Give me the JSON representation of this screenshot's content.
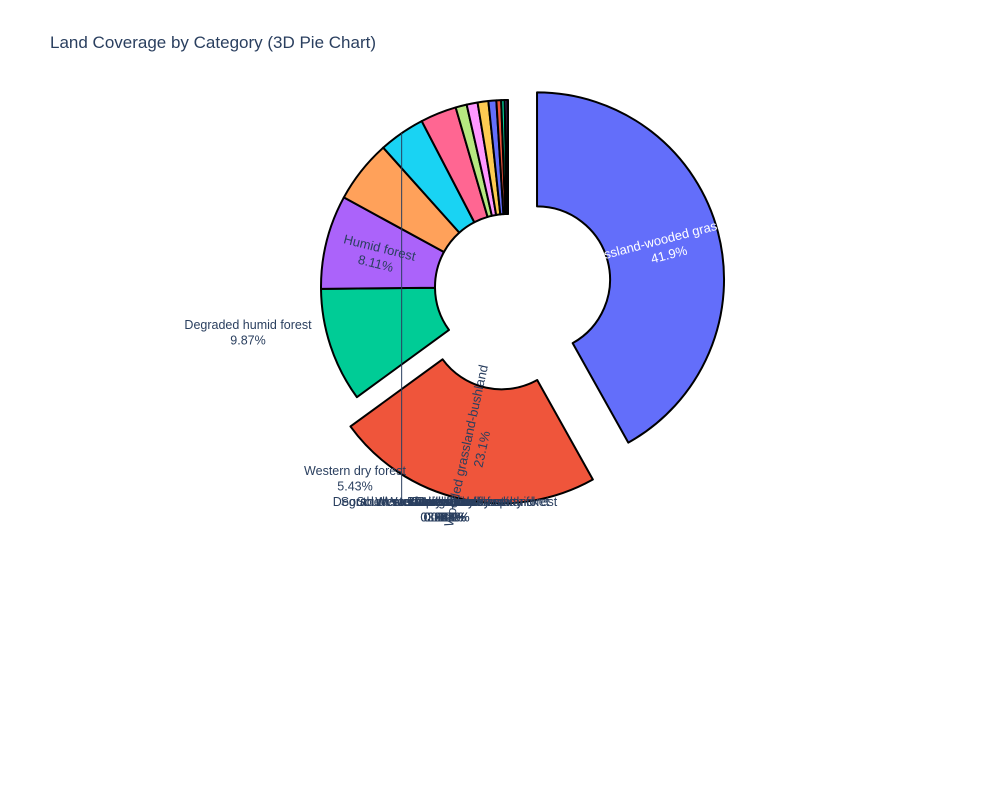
{
  "chart_data": {
    "type": "pie",
    "title": "Land Coverage by Category (3D Pie Chart)",
    "hole": true,
    "slices": [
      {
        "label": "Plateau grassland-wooded grassland mosaic",
        "percent_text": "41.9%",
        "value": 41.9,
        "color": "#636efa",
        "pulled": true,
        "inside": true,
        "text_color": "#ffffff"
      },
      {
        "label": "Wooded grassland-bushland",
        "percent_text": "23.1%",
        "value": 23.1,
        "color": "#ef553b",
        "pulled": true,
        "inside": true,
        "text_color": "#2a3f5f"
      },
      {
        "label": "Degraded humid forest",
        "percent_text": "9.87%",
        "value": 9.87,
        "color": "#00cc96"
      },
      {
        "label": "Humid forest",
        "percent_text": "8.11%",
        "value": 8.11,
        "color": "#ab63fa",
        "inside": true,
        "text_color": "#2a3f5f"
      },
      {
        "label": "Western dry forest",
        "percent_text": "5.43%",
        "value": 5.43,
        "color": "#ffa15a"
      },
      {
        "label": "Cultivation",
        "percent_text": "3.99%",
        "value": 3.99,
        "color": "#19d3f3"
      },
      {
        "label": "South western dry spiny forest-thicket",
        "percent_text": "3.12%",
        "value": 3.12,
        "color": "#ff6692"
      },
      {
        "label": "Bare soil/rock",
        "percent_text": "0.966%",
        "value": 0.966,
        "color": "#b6e880"
      },
      {
        "label": "Wetlands",
        "percent_text": "0.945%",
        "value": 0.945,
        "color": "#ff97ff"
      },
      {
        "label": "Degraded south western dry spiny forest",
        "percent_text": "0.925%",
        "value": 0.925,
        "color": "#fecb52"
      },
      {
        "label": "Western sub-humid fores",
        "percent_text": "0.684%",
        "value": 0.684,
        "color": "#636efa"
      },
      {
        "label": "Mangroves",
        "percent_text": "0.412%",
        "value": 0.412,
        "color": "#ef553b"
      },
      {
        "label": "South western coastal bushland",
        "percent_text": "0.302%",
        "value": 0.302,
        "color": "#00cc96"
      },
      {
        "label": "Tapia forest",
        "percent_text": "0.221%",
        "value": 0.221,
        "color": "#ab63fa"
      },
      {
        "label": "Littoral forest",
        "percent_text": "0.0503%",
        "value": 0.0503,
        "color": "#ffa15a"
      },
      {
        "label": "Western humid forest",
        "percent_text": "0.0101%",
        "value": 0.0101,
        "color": "#19d3f3"
      }
    ]
  }
}
